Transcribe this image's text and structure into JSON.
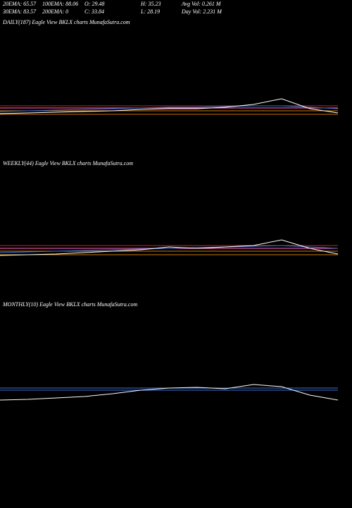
{
  "header": {
    "rows": [
      [
        "20EMA: 65.57",
        "100EMA: 88.06",
        "O: 29.48",
        "H: 35.23",
        "Avg Vol: 0.261 M"
      ],
      [
        "30EMA: 83.57",
        "200EMA: 0",
        "C: 33.84",
        "L: 28.19",
        "Day Vol: 2.231 M"
      ]
    ]
  },
  "chart_data": [
    {
      "type": "line",
      "title": "DAILY(187) Eagle   View  BKLX  charts MunafaSutra.com",
      "ylim": [
        0,
        140
      ],
      "series": [
        {
          "color": "#cc7a00",
          "values": [
            8,
            8,
            8,
            8,
            8,
            8,
            8,
            8,
            8,
            8,
            8,
            8,
            8
          ]
        },
        {
          "color": "#cc7a00",
          "values": [
            13,
            13,
            13,
            13,
            13,
            13,
            13,
            13,
            13,
            13,
            13,
            13,
            13
          ]
        },
        {
          "color": "#ff66cc",
          "values": [
            17,
            17,
            17,
            17,
            17,
            17,
            17,
            17,
            17,
            17,
            17,
            17,
            17
          ]
        },
        {
          "color": "#cc2222",
          "values": [
            20,
            20,
            20,
            20,
            20,
            20,
            20,
            20,
            20,
            20,
            20,
            20,
            20
          ]
        },
        {
          "color": "#3b6fd4",
          "values": [
            12,
            13,
            14,
            15,
            16,
            17,
            18,
            18,
            19,
            20,
            20,
            18,
            16
          ]
        },
        {
          "color": "#ffffff",
          "values": [
            9,
            10,
            11,
            12,
            13,
            15,
            16,
            16,
            18,
            22,
            30,
            16,
            10
          ]
        }
      ]
    },
    {
      "type": "line",
      "title": "WEEKLY(44) Eagle   View  BKLX  charts MunafaSutra.com",
      "ylim": [
        0,
        140
      ],
      "series": [
        {
          "color": "#cc7a00",
          "values": [
            9,
            9,
            9,
            9,
            9,
            9,
            9,
            9,
            9,
            9,
            9,
            9,
            9
          ]
        },
        {
          "color": "#cc7a00",
          "values": [
            14,
            14,
            14,
            14,
            14,
            14,
            14,
            14,
            14,
            14,
            14,
            14,
            14
          ]
        },
        {
          "color": "#ff66cc",
          "values": [
            18,
            18,
            18,
            18,
            18,
            18,
            18,
            18,
            18,
            18,
            18,
            18,
            18
          ]
        },
        {
          "color": "#cc2222",
          "values": [
            22,
            22,
            22,
            22,
            22,
            22,
            22,
            22,
            22,
            22,
            22,
            22,
            22
          ]
        },
        {
          "color": "#3b6fd4",
          "values": [
            12,
            13,
            14,
            15,
            16,
            17,
            18,
            19,
            20,
            21,
            22,
            20,
            18
          ]
        },
        {
          "color": "#ffffff",
          "values": [
            8,
            9,
            10,
            12,
            14,
            16,
            20,
            18,
            20,
            22,
            30,
            18,
            10
          ]
        }
      ]
    },
    {
      "type": "line",
      "title": "MONTHLY(10) Eagle   View  BKLX  charts MunafaSutra.com",
      "ylim": [
        0,
        270
      ],
      "series": [
        {
          "color": "#3b6fd4",
          "values": [
            150,
            150,
            150,
            150,
            150,
            150,
            150,
            150,
            150,
            150,
            150,
            150,
            150
          ]
        },
        {
          "color": "#3b6fd4",
          "values": [
            147,
            147,
            147,
            147,
            147,
            147,
            147,
            147,
            147,
            147,
            147,
            147,
            147
          ]
        },
        {
          "color": "#ffffff",
          "values": [
            133,
            134,
            136,
            138,
            142,
            147,
            150,
            151,
            149,
            155,
            152,
            140,
            133
          ]
        }
      ]
    }
  ]
}
